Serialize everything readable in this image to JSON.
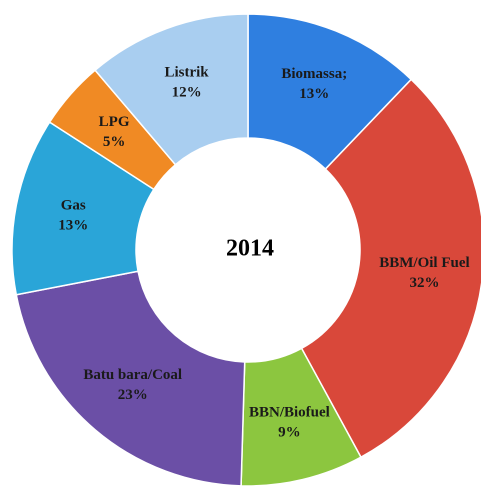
{
  "chart_data": {
    "type": "donut",
    "title": "2014",
    "categories": [
      "Biomassa;",
      "BBM/Oil Fuel",
      "BBN/Biofuel",
      "Batu bara/Coal",
      "Gas",
      "LPG",
      "Listrik"
    ],
    "values": [
      13,
      32,
      9,
      23,
      13,
      5,
      12
    ],
    "value_labels": [
      "13%",
      "32%",
      "9%",
      "23%",
      "13%",
      "5%",
      "12%"
    ],
    "colors": [
      "#2f7fe0",
      "#d9483a",
      "#8cc63f",
      "#6b4fa6",
      "#2aa5d8",
      "#f08a24",
      "#a9cef0"
    ]
  }
}
